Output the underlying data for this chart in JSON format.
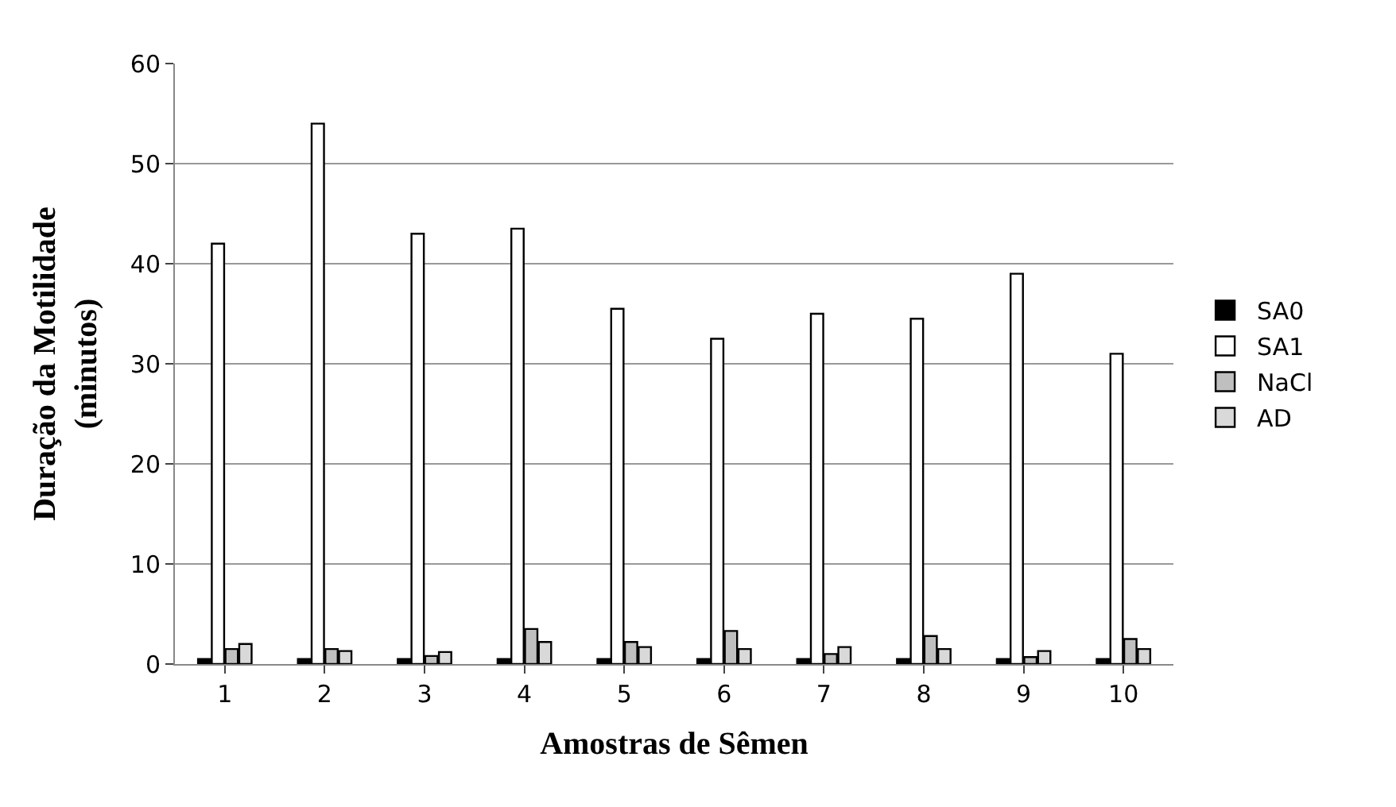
{
  "chart_data": {
    "type": "bar",
    "xlabel": "Amostras de Sêmen",
    "ylabel": "Duração da Motilidade\n(minutos)",
    "categories": [
      "1",
      "2",
      "3",
      "4",
      "5",
      "6",
      "7",
      "8",
      "9",
      "10"
    ],
    "series": [
      {
        "name": "SA0",
        "color": "#000000",
        "values": [
          0.5,
          0.5,
          0.5,
          0.5,
          0.5,
          0.5,
          0.5,
          0.5,
          0.5,
          0.5
        ]
      },
      {
        "name": "SA1",
        "color": "#ffffff",
        "values": [
          42,
          54,
          43,
          43.5,
          35.5,
          32.5,
          35,
          34.5,
          39,
          31
        ]
      },
      {
        "name": "NaCl",
        "color": "#bfbfbf",
        "values": [
          1.5,
          1.5,
          0.8,
          3.5,
          2.2,
          3.3,
          1.0,
          2.8,
          0.7,
          2.5
        ]
      },
      {
        "name": "AD",
        "color": "#d9d9d9",
        "values": [
          2,
          1.3,
          1.2,
          2.2,
          1.7,
          1.5,
          1.7,
          1.5,
          1.3,
          1.5
        ]
      }
    ],
    "ylim": [
      0,
      60
    ],
    "yticks": [
      0,
      10,
      20,
      30,
      40,
      50,
      60
    ],
    "grid": "y",
    "legend": "right"
  }
}
